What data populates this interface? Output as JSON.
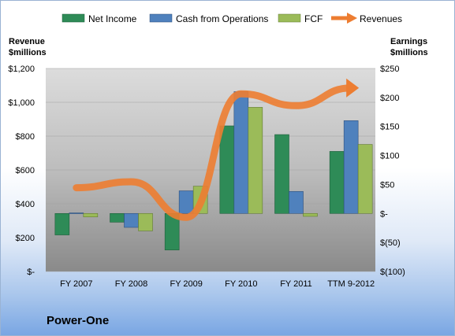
{
  "chart_data": {
    "type": "bar",
    "categories": [
      "FY 2007",
      "FY 2008",
      "FY 2009",
      "FY 2010",
      "FY 2011",
      "TTM 9-2012"
    ],
    "series": [
      {
        "name": "Net Income",
        "axis": "right",
        "color": "#2e8b57",
        "values": [
          -37,
          -15,
          -63,
          151,
          136,
          107
        ]
      },
      {
        "name": "Cash from Operations",
        "axis": "right",
        "color": "#4f81bd",
        "values": [
          1,
          -24,
          39,
          210,
          38,
          160
        ]
      },
      {
        "name": "FCF",
        "axis": "right",
        "color": "#9bbb59",
        "values": [
          -6,
          -30,
          47,
          183,
          -5,
          119
        ]
      },
      {
        "name": "Revenues",
        "axis": "left",
        "type": "line",
        "color": "#ed7d31",
        "values": [
          495,
          530,
          320,
          1050,
          980,
          1085
        ]
      }
    ],
    "left_axis": {
      "title_line1": "Revenue",
      "title_line2": "$millions",
      "range": [
        0,
        1200
      ],
      "tick_labels": [
        "$-",
        "$200",
        "$400",
        "$600",
        "$800",
        "$1,000",
        "$1,200"
      ]
    },
    "right_axis": {
      "title_line1": "Earnings",
      "title_line2": "$millions",
      "range": [
        -100,
        250
      ],
      "tick_labels": [
        "$(100)",
        "$(50)",
        "$-",
        "$50",
        "$100",
        "$150",
        "$200",
        "$250"
      ]
    },
    "legend_position": "top",
    "grid": true
  },
  "company_name": "Power-One"
}
